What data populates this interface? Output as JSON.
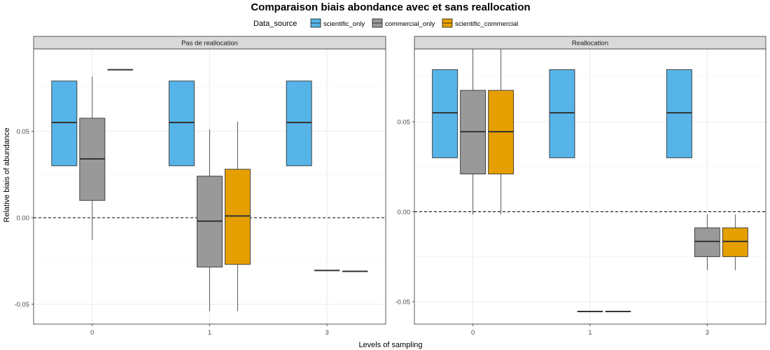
{
  "chart_data": {
    "type": "boxplot",
    "title": "Comparaison biais abondance avec et sans reallocation",
    "xlabel": "Levels of sampling",
    "ylabel": "Relative biais of abundance",
    "categories": [
      "0",
      "1",
      "3"
    ],
    "legend": {
      "title": "Data_source",
      "position": "top",
      "entries": [
        {
          "name": "scientific_only",
          "color": "#56B4E9"
        },
        {
          "name": "commercial_only",
          "color": "#999999"
        },
        {
          "name": "scientific_commercial",
          "color": "#E69F00"
        }
      ]
    },
    "reference_line": {
      "y": 0,
      "style": "dashed"
    },
    "y_ticks": [
      -0.05,
      0.0,
      0.05
    ],
    "y_tick_labels": [
      "-0.05",
      "0.00",
      "0.05"
    ],
    "grid": true,
    "panels": [
      {
        "strip": "Pas de reallocation",
        "ylim": [
          -0.0615,
          0.0975
        ],
        "boxes": [
          {
            "category": "0",
            "series": "scientific_only",
            "min": 0.03,
            "q1": 0.03,
            "median": 0.055,
            "q3": 0.079,
            "max": 0.079
          },
          {
            "category": "0",
            "series": "commercial_only",
            "min": -0.013,
            "q1": 0.01,
            "median": 0.034,
            "q3": 0.0575,
            "max": 0.0815
          },
          {
            "category": "0",
            "series": "scientific_commercial",
            "min": 0.0855,
            "q1": 0.0855,
            "median": 0.0855,
            "q3": 0.0855,
            "max": 0.0855
          },
          {
            "category": "1",
            "series": "scientific_only",
            "min": 0.03,
            "q1": 0.03,
            "median": 0.055,
            "q3": 0.079,
            "max": 0.079
          },
          {
            "category": "1",
            "series": "commercial_only",
            "min": -0.054,
            "q1": -0.0285,
            "median": -0.002,
            "q3": 0.024,
            "max": 0.051
          },
          {
            "category": "1",
            "series": "scientific_commercial",
            "min": -0.054,
            "q1": -0.027,
            "median": 0.001,
            "q3": 0.028,
            "max": 0.0555
          },
          {
            "category": "3",
            "series": "scientific_only",
            "min": 0.03,
            "q1": 0.03,
            "median": 0.055,
            "q3": 0.079,
            "max": 0.079
          },
          {
            "category": "3",
            "series": "commercial_only",
            "min": -0.0305,
            "q1": -0.0305,
            "median": -0.0305,
            "q3": -0.0305,
            "max": -0.0305
          },
          {
            "category": "3",
            "series": "scientific_commercial",
            "min": -0.031,
            "q1": -0.031,
            "median": -0.031,
            "q3": -0.031,
            "max": -0.031
          }
        ]
      },
      {
        "strip": "Reallocation",
        "ylim": [
          -0.0625,
          0.0905
        ],
        "boxes": [
          {
            "category": "0",
            "series": "scientific_only",
            "min": 0.03,
            "q1": 0.03,
            "median": 0.055,
            "q3": 0.079,
            "max": 0.079
          },
          {
            "category": "0",
            "series": "commercial_only",
            "min": -0.0015,
            "q1": 0.021,
            "median": 0.0445,
            "q3": 0.0675,
            "max": 0.0905
          },
          {
            "category": "0",
            "series": "scientific_commercial",
            "min": -0.0015,
            "q1": 0.021,
            "median": 0.0445,
            "q3": 0.0675,
            "max": 0.0905
          },
          {
            "category": "1",
            "series": "scientific_only",
            "min": 0.03,
            "q1": 0.03,
            "median": 0.055,
            "q3": 0.079,
            "max": 0.079
          },
          {
            "category": "1",
            "series": "commercial_only",
            "min": -0.0555,
            "q1": -0.0555,
            "median": -0.0555,
            "q3": -0.0555,
            "max": -0.0555
          },
          {
            "category": "1",
            "series": "scientific_commercial",
            "min": -0.0555,
            "q1": -0.0555,
            "median": -0.0555,
            "q3": -0.0555,
            "max": -0.0555
          },
          {
            "category": "3",
            "series": "scientific_only",
            "min": 0.03,
            "q1": 0.03,
            "median": 0.055,
            "q3": 0.079,
            "max": 0.079
          },
          {
            "category": "3",
            "series": "commercial_only",
            "min": -0.0325,
            "q1": -0.025,
            "median": -0.0165,
            "q3": -0.009,
            "max": -0.0015
          },
          {
            "category": "3",
            "series": "scientific_commercial",
            "min": -0.0325,
            "q1": -0.025,
            "median": -0.0165,
            "q3": -0.009,
            "max": -0.0015
          }
        ]
      }
    ]
  }
}
